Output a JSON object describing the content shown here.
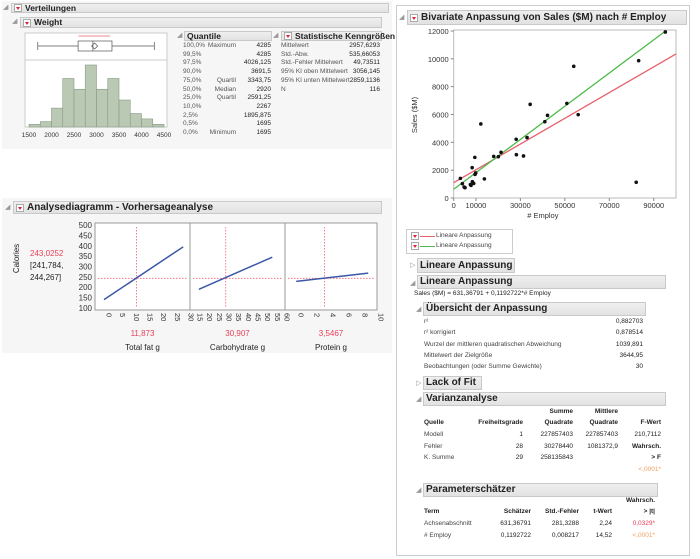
{
  "distributions": {
    "title": "Verteilungen",
    "variable": "Weight",
    "quantiles": {
      "title": "Quantile",
      "rows": [
        {
          "pct": "100,0%",
          "label": "Maximum",
          "value": "4285"
        },
        {
          "pct": "99,5%",
          "label": "",
          "value": "4285"
        },
        {
          "pct": "97,5%",
          "label": "",
          "value": "4026,125"
        },
        {
          "pct": "90,0%",
          "label": "",
          "value": "3691,5"
        },
        {
          "pct": "75,0%",
          "label": "Quartil",
          "value": "3343,75"
        },
        {
          "pct": "50,0%",
          "label": "Median",
          "value": "2920"
        },
        {
          "pct": "25,0%",
          "label": "Quartil",
          "value": "2591,25"
        },
        {
          "pct": "10,0%",
          "label": "",
          "value": "2267"
        },
        {
          "pct": "2,5%",
          "label": "",
          "value": "1895,875"
        },
        {
          "pct": "0,5%",
          "label": "",
          "value": "1695"
        },
        {
          "pct": "0,0%",
          "label": "Minimum",
          "value": "1695"
        }
      ]
    },
    "stats": {
      "title": "Statistische Kenngrößen",
      "rows": [
        {
          "label": "Mittelwert",
          "value": "2957,6293"
        },
        {
          "label": "Std.-Abw.",
          "value": "535,66053"
        },
        {
          "label": "Std.-Fehler Mittelwert",
          "value": "49,73511"
        },
        {
          "label": "95% KI oben Mittelwert",
          "value": "3056,145"
        },
        {
          "label": "95% KI unten Mittelwert",
          "value": "2859,1136"
        },
        {
          "label": "N",
          "value": "116"
        }
      ]
    }
  },
  "profiler": {
    "title": "Analysediagramm - Vorhersageanalyse",
    "response": "Calories",
    "response_value": "243,0252",
    "ci_line1": "[241,784,",
    "ci_line2": "244,267]"
  },
  "bivariate": {
    "title": "Bivariate Anpassung von Sales ($M) nach # Employ",
    "legend": [
      "Lineare Anpassung",
      "Lineare Anpassung"
    ],
    "collapsed_fit_title": "Lineare Anpassung",
    "fit_title": "Lineare Anpassung",
    "equation": "Sales ($M) = 631,36791 + 0,1192722*# Employ",
    "summary": {
      "title": "Übersicht der Anpassung",
      "rows": [
        {
          "label": "r²",
          "value": "0,882703"
        },
        {
          "label": "r² korrigiert",
          "value": "0,878514"
        },
        {
          "label": "Wurzel der mittleren quadratischen Abweichung",
          "value": "1039,891"
        },
        {
          "label": "Mittelwert der Zielgröße",
          "value": "3644,95"
        },
        {
          "label": "Beobachtungen (oder Summe Gewichte)",
          "value": "30"
        }
      ]
    },
    "lack_of_fit_title": "Lack of Fit",
    "anova": {
      "title": "Varianzanalyse",
      "head_top": [
        "Summe",
        "Mittlere"
      ],
      "headers": [
        "Quelle",
        "Freiheitsgrade",
        "Quadrate",
        "Quadrate",
        "F-Wert"
      ],
      "rows": [
        [
          "Modell",
          "1",
          "227857403",
          "227857403",
          "210,7112"
        ],
        [
          "Fehler",
          "28",
          "30278440",
          "1081372,9",
          "Wahrsch."
        ],
        [
          "K. Summe",
          "29",
          "258135843",
          "",
          "> F"
        ]
      ],
      "p_value": "<,0001*"
    },
    "params": {
      "title": "Parameterschätzer",
      "head_top": "Wahrsch.",
      "headers": [
        "Term",
        "Schätzer",
        "Std.-Fehler",
        "t-Wert",
        "> |t|"
      ],
      "rows": [
        [
          "Achsenabschnitt",
          "631,36791",
          "281,3288",
          "2,24",
          "0,0329*"
        ],
        [
          "# Employ",
          "0,1192722",
          "0,008217",
          "14,52",
          "<,0001*"
        ]
      ]
    }
  },
  "chart_data": [
    {
      "type": "bar",
      "title": "Weight histogram",
      "bin_edges": [
        1500,
        1750,
        2000,
        2250,
        2500,
        2750,
        3000,
        3250,
        3500,
        3750,
        4000,
        4250,
        4500
      ],
      "values": [
        1,
        2,
        7,
        18,
        14,
        23,
        14,
        18,
        10,
        5,
        3,
        1
      ],
      "xticks": [
        "1500",
        "2000",
        "2500",
        "3000",
        "3500",
        "4000",
        "4500"
      ],
      "xlim": [
        1500,
        4500
      ],
      "boxplot": {
        "min": 1695,
        "q1": 2591.25,
        "median": 2920,
        "mean": 2957.63,
        "q3": 3343.75,
        "max": 4285,
        "shortest_half": [
          2600,
          3300
        ]
      },
      "color": "#b9c9b3"
    },
    {
      "type": "line",
      "title": "Prediction profiler",
      "ylabel": "Calories",
      "yticks": [
        "100",
        "150",
        "200",
        "250",
        "300",
        "350",
        "400",
        "450",
        "500"
      ],
      "ylim": [
        90,
        510
      ],
      "current_y": 243.0252,
      "panels": [
        {
          "xlabel": "Total fat g",
          "current": "11,873",
          "current_x": 11.873,
          "xlim": [
            -3.3,
            31.5
          ],
          "xticks": [
            "0",
            "5",
            "10",
            "15",
            "20",
            "25",
            "30"
          ],
          "line": [
            [
              0,
              140
            ],
            [
              29,
              395
            ]
          ]
        },
        {
          "xlabel": "Carbohydrate g",
          "current": "30,907",
          "current_x": 30.907,
          "xlim": [
            12.4,
            61.6
          ],
          "xticks": [
            "15",
            "20",
            "25",
            "30",
            "35",
            "40",
            "45",
            "50",
            "55",
            "60"
          ],
          "line": [
            [
              17,
              190
            ],
            [
              55,
              345
            ]
          ]
        },
        {
          "xlabel": "Protein g",
          "current": "3,5467",
          "current_x": 3.5467,
          "xlim": [
            -1.4,
            10.1
          ],
          "xticks": [
            "0",
            "2",
            "4",
            "6",
            "8",
            "10"
          ],
          "line": [
            [
              0,
              228
            ],
            [
              9,
              268
            ]
          ]
        }
      ]
    },
    {
      "type": "scatter",
      "xlabel": "# Employ",
      "ylabel": "Sales ($M)",
      "xlim": [
        0,
        100000
      ],
      "ylim": [
        0,
        12000
      ],
      "xticks": [
        "0",
        "10000",
        "30000",
        "50000",
        "70000",
        "90000"
      ],
      "yticks": [
        "0",
        "2000",
        "4000",
        "6000",
        "8000",
        "10000",
        "12000"
      ],
      "points": [
        [
          95200,
          11930
        ],
        [
          83200,
          9870
        ],
        [
          54000,
          9460
        ],
        [
          82100,
          1130
        ],
        [
          56000,
          5990
        ],
        [
          50900,
          6800
        ],
        [
          42200,
          5940
        ],
        [
          41000,
          5480
        ],
        [
          34400,
          6730
        ],
        [
          33000,
          4340
        ],
        [
          28100,
          4220
        ],
        [
          28200,
          3110
        ],
        [
          31400,
          3020
        ],
        [
          21300,
          3280
        ],
        [
          18000,
          2990
        ],
        [
          20100,
          2970
        ],
        [
          12200,
          5320
        ],
        [
          9500,
          2920
        ],
        [
          8300,
          2180
        ],
        [
          9900,
          1800
        ],
        [
          9600,
          1700
        ],
        [
          13800,
          1370
        ],
        [
          8400,
          1170
        ],
        [
          9000,
          1050
        ],
        [
          7800,
          910
        ],
        [
          3000,
          1410
        ],
        [
          3900,
          1030
        ],
        [
          4700,
          790
        ],
        [
          5100,
          740
        ],
        [
          7500,
          970
        ]
      ],
      "fits": [
        {
          "name": "Lineare Anpassung",
          "color": "#e8606a",
          "intercept": 1100,
          "slope": 0.0925
        },
        {
          "name": "Lineare Anpassung",
          "color": "#4cbb4c",
          "intercept": 631.36791,
          "slope": 0.1192722
        }
      ]
    }
  ]
}
